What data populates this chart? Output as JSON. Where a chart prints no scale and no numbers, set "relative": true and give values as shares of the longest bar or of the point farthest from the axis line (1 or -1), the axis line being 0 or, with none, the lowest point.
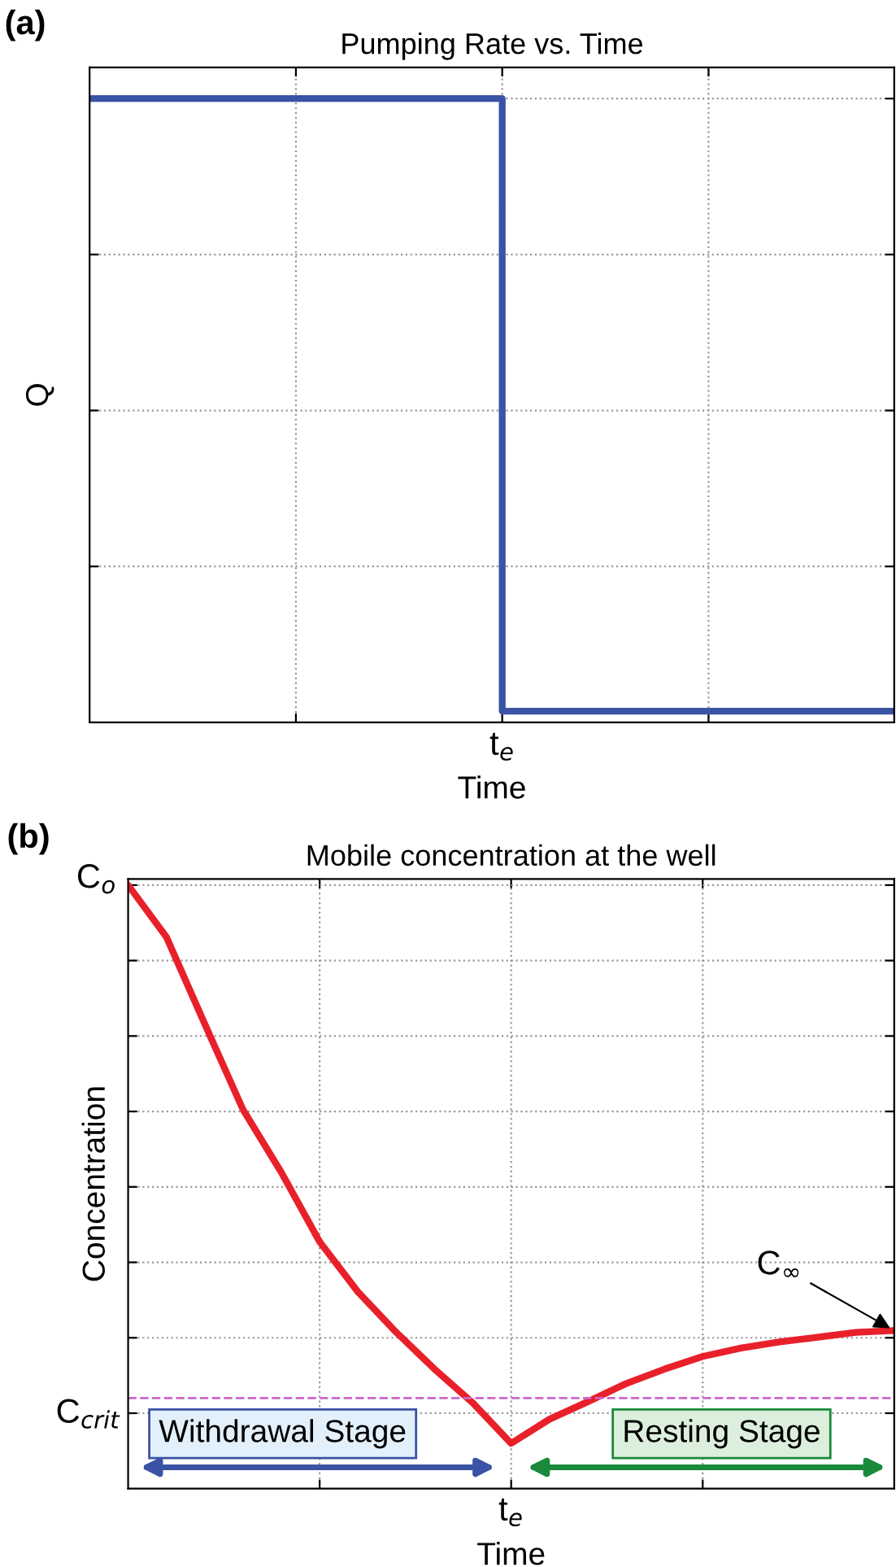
{
  "chart_data": [
    {
      "type": "step",
      "title": "Pumping Rate vs. Time",
      "xlabel": "Time",
      "ylabel": "Q",
      "relative": true,
      "categories": [
        null,
        null,
        null,
        null,
        null,
        null,
        null,
        null,
        null,
        null,
        null,
        null,
        null,
        null,
        null,
        null,
        null,
        null,
        null,
        null,
        null,
        null,
        null,
        null,
        null,
        null,
        null,
        null,
        null,
        null,
        null,
        null,
        null,
        null,
        null,
        null,
        null,
        null,
        null,
        null
      ],
      "values": [
        1,
        1,
        1,
        1,
        1,
        1,
        1,
        1,
        1,
        1,
        1,
        1,
        1,
        1,
        1,
        1,
        1,
        1,
        1,
        1,
        0.018,
        0.018,
        0.018,
        0.018,
        0.018,
        0.018,
        0.018,
        0.018,
        0.018,
        0.018,
        0.018,
        0.018,
        0.018,
        0.018,
        0.018,
        0.018,
        0.018,
        0.018,
        0.018,
        0.018
      ],
      "color": "#3a53a4",
      "grid": true,
      "annotations": [
        "(a)",
        "t$_{e}$"
      ]
    },
    {
      "type": "line",
      "title": "Mobile concentration at the well",
      "xlabel": "Time",
      "ylabel": "Concentration",
      "relative": true,
      "categories": [
        null,
        null,
        null,
        null,
        null,
        null,
        null,
        null,
        null,
        null,
        null,
        null,
        null,
        null,
        null,
        null,
        null,
        null,
        null,
        null,
        null
      ],
      "values": [
        1,
        0.914,
        0.77,
        0.628,
        0.524,
        0.409,
        0.326,
        0.259,
        0.198,
        0.142,
        0.075,
        0.115,
        0.144,
        0.174,
        0.198,
        0.219,
        0.233,
        0.243,
        0.251,
        0.259,
        0.262
      ],
      "color": "#e8202a",
      "ref_lines": [
        {
          "axis": "y",
          "value": 0.15,
          "label": "C$_{crit}$",
          "color": "#cc66cc",
          "line_style": "dashed"
        }
      ],
      "grid": true,
      "annotations": [
        "(b)",
        "C$_{o}$",
        "C$_{∞}$",
        "Withdrawal Stage",
        "Resting Stage",
        "t$_{e}$"
      ]
    }
  ]
}
